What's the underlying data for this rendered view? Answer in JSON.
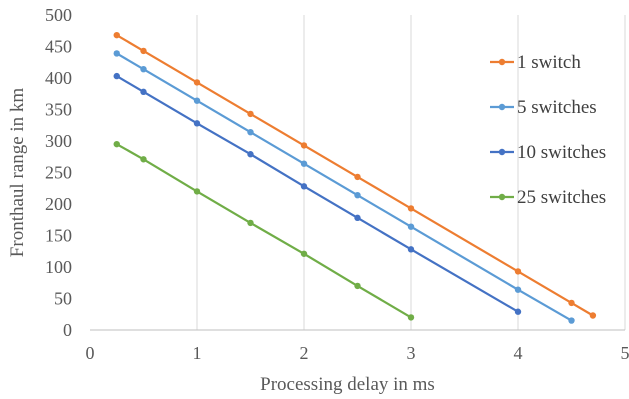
{
  "chart_data": {
    "type": "line",
    "xlabel": "Processing delay in ms",
    "ylabel": "Fronthaul range in km",
    "xlim": [
      0,
      5
    ],
    "ylim": [
      0,
      500
    ],
    "x_ticks": [
      "0",
      "1",
      "2",
      "3",
      "4",
      "5"
    ],
    "y_ticks": [
      "0",
      "50",
      "100",
      "150",
      "200",
      "250",
      "300",
      "350",
      "400",
      "450",
      "500"
    ],
    "grid": "vertical",
    "legend_position": "right",
    "series": [
      {
        "name": "1 switch",
        "color": "#ed7d31",
        "points": [
          [
            0.25,
            468
          ],
          [
            0.5,
            443
          ],
          [
            1,
            393
          ],
          [
            1.5,
            343
          ],
          [
            2,
            293
          ],
          [
            2.5,
            243
          ],
          [
            3,
            193
          ],
          [
            4,
            93
          ],
          [
            4.5,
            43
          ],
          [
            4.7,
            23
          ]
        ]
      },
      {
        "name": "5 switches",
        "color": "#5b9bd5",
        "points": [
          [
            0.25,
            439
          ],
          [
            0.5,
            414
          ],
          [
            1,
            364
          ],
          [
            1.5,
            314
          ],
          [
            2,
            264
          ],
          [
            2.5,
            214
          ],
          [
            3,
            164
          ],
          [
            4,
            64
          ],
          [
            4.5,
            15
          ]
        ]
      },
      {
        "name": "10 switches",
        "color": "#4472c4",
        "points": [
          [
            0.25,
            403
          ],
          [
            0.5,
            378
          ],
          [
            1,
            328
          ],
          [
            1.5,
            279
          ],
          [
            2,
            228
          ],
          [
            2.5,
            178
          ],
          [
            3,
            128
          ],
          [
            4,
            29
          ]
        ]
      },
      {
        "name": "25 switches",
        "color": "#70ad47",
        "points": [
          [
            0.25,
            295
          ],
          [
            0.5,
            271
          ],
          [
            1,
            220
          ],
          [
            1.5,
            170
          ],
          [
            2,
            121
          ],
          [
            2.5,
            70
          ],
          [
            3,
            20
          ]
        ]
      }
    ]
  }
}
